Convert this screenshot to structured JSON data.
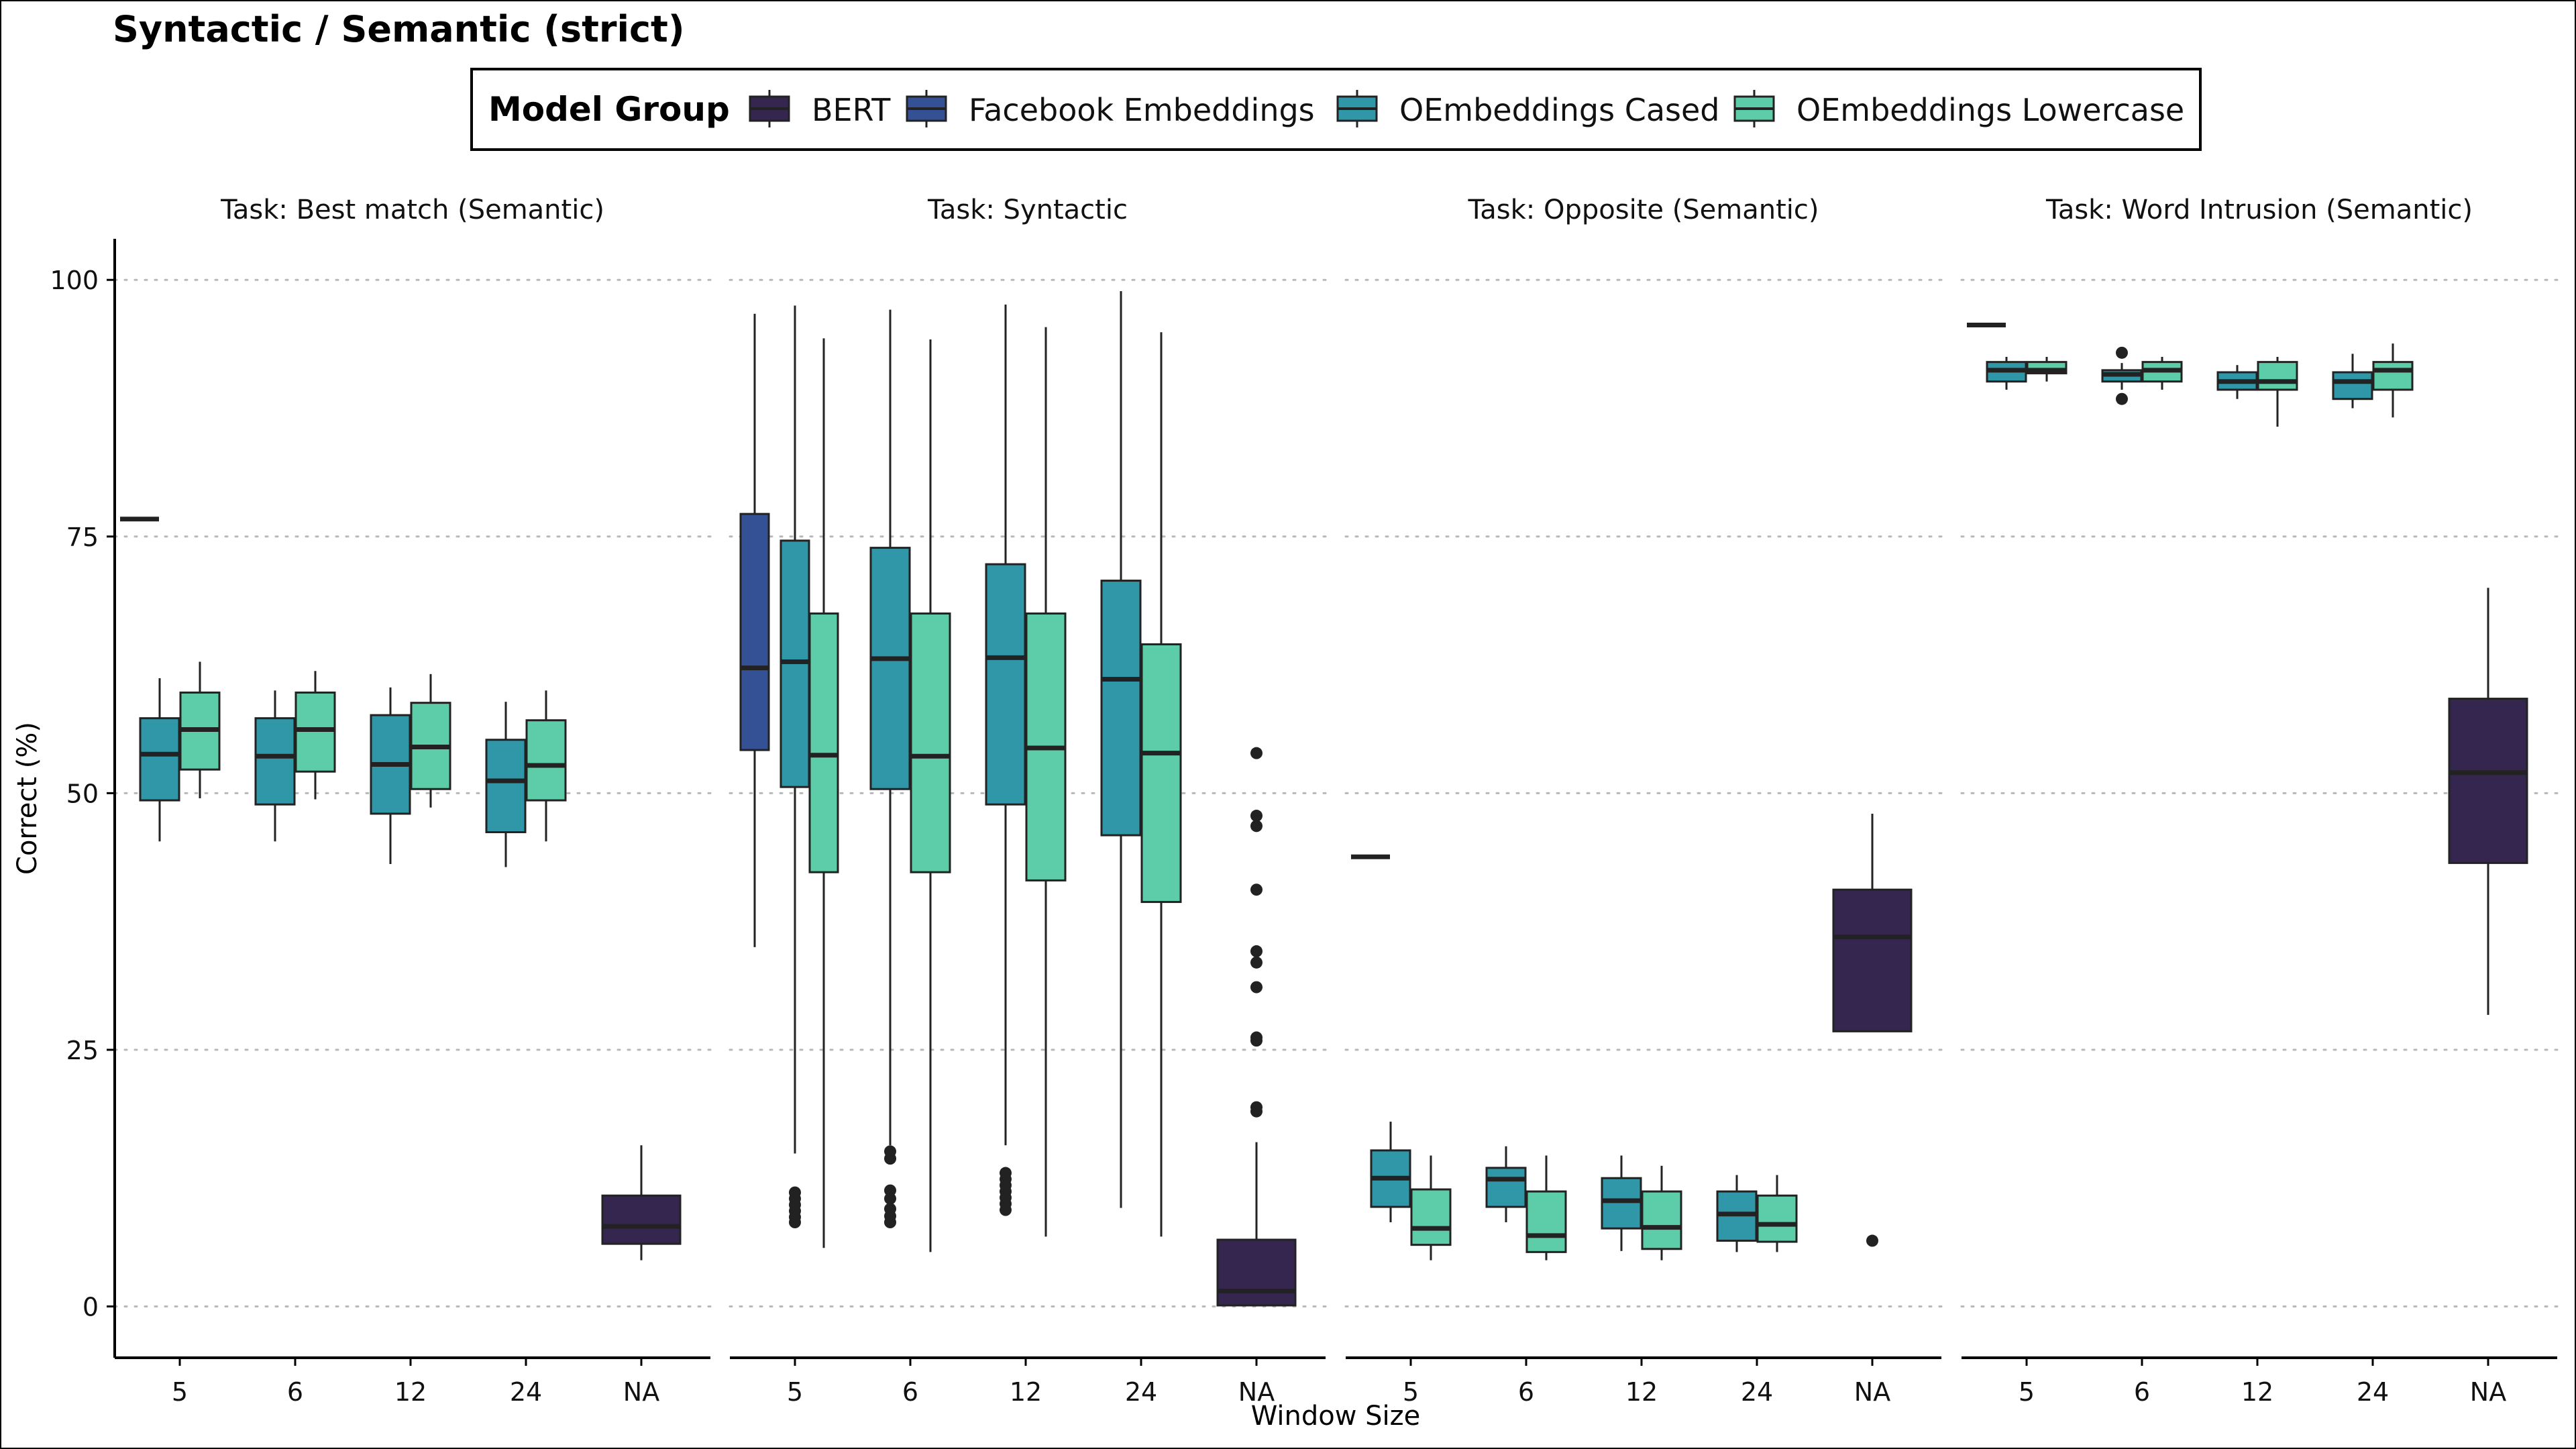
{
  "chart_data": {
    "type": "boxplot",
    "title": "Syntactic / Semantic (strict)",
    "xlabel": "Window Size",
    "ylabel": "Correct (%)",
    "ylim": [
      -5,
      104
    ],
    "yticks": [
      0,
      25,
      50,
      75,
      100
    ],
    "grid": "horizontal dotted",
    "legend": {
      "title": "Model Group",
      "placement": "top",
      "entries": [
        {
          "name": "BERT",
          "color": "#35264f"
        },
        {
          "name": "Facebook Embeddings",
          "color": "#355196"
        },
        {
          "name": "OEmbeddings Cased",
          "color": "#3097a8"
        },
        {
          "name": "OEmbeddings Lowercase",
          "color": "#5ccda8"
        }
      ]
    },
    "categories": [
      "5",
      "6",
      "12",
      "24",
      "NA"
    ],
    "panels": [
      {
        "title": "Task: Best match (Semantic)",
        "boxes": [
          {
            "category": "5",
            "group": "BERT",
            "q1": 76.7,
            "median": 76.7,
            "q3": 76.7,
            "whisker_low": 76.7,
            "whisker_high": 76.7,
            "outliers": []
          },
          {
            "category": "5",
            "group": "OEmbeddings Cased",
            "q1": 49.3,
            "median": 53.8,
            "q3": 57.3,
            "whisker_low": 45.3,
            "whisker_high": 61.2,
            "outliers": []
          },
          {
            "category": "5",
            "group": "OEmbeddings Lowercase",
            "q1": 52.3,
            "median": 56.2,
            "q3": 59.8,
            "whisker_low": 49.5,
            "whisker_high": 62.8,
            "outliers": []
          },
          {
            "category": "6",
            "group": "OEmbeddings Cased",
            "q1": 48.9,
            "median": 53.6,
            "q3": 57.3,
            "whisker_low": 45.3,
            "whisker_high": 60.0,
            "outliers": []
          },
          {
            "category": "6",
            "group": "OEmbeddings Lowercase",
            "q1": 52.1,
            "median": 56.2,
            "q3": 59.8,
            "whisker_low": 49.4,
            "whisker_high": 61.9,
            "outliers": []
          },
          {
            "category": "12",
            "group": "OEmbeddings Cased",
            "q1": 48.0,
            "median": 52.8,
            "q3": 57.6,
            "whisker_low": 43.1,
            "whisker_high": 60.3,
            "outliers": []
          },
          {
            "category": "12",
            "group": "OEmbeddings Lowercase",
            "q1": 50.4,
            "median": 54.5,
            "q3": 58.8,
            "whisker_low": 48.6,
            "whisker_high": 61.6,
            "outliers": []
          },
          {
            "category": "24",
            "group": "OEmbeddings Cased",
            "q1": 46.2,
            "median": 51.2,
            "q3": 55.2,
            "whisker_low": 42.8,
            "whisker_high": 58.9,
            "outliers": []
          },
          {
            "category": "24",
            "group": "OEmbeddings Lowercase",
            "q1": 49.3,
            "median": 52.7,
            "q3": 57.1,
            "whisker_low": 45.3,
            "whisker_high": 60.0,
            "outliers": []
          },
          {
            "category": "NA",
            "group": "BERT",
            "q1": 6.1,
            "median": 7.8,
            "q3": 10.8,
            "whisker_low": 4.5,
            "whisker_high": 15.7,
            "outliers": []
          }
        ]
      },
      {
        "title": "Task: Syntactic",
        "boxes": [
          {
            "category": "5",
            "group": "Facebook Embeddings",
            "q1": 54.2,
            "median": 62.2,
            "q3": 77.2,
            "whisker_low": 35.0,
            "whisker_high": 96.7,
            "outliers": []
          },
          {
            "category": "5",
            "group": "OEmbeddings Cased",
            "q1": 50.6,
            "median": 62.8,
            "q3": 74.6,
            "whisker_low": 14.9,
            "whisker_high": 97.5,
            "outliers": [
              8.2,
              8.7,
              9.3,
              9.9,
              10.5,
              11.1
            ]
          },
          {
            "category": "5",
            "group": "OEmbeddings Lowercase",
            "q1": 42.3,
            "median": 53.7,
            "q3": 67.5,
            "whisker_low": 5.7,
            "whisker_high": 94.3,
            "outliers": []
          },
          {
            "category": "6",
            "group": "OEmbeddings Cased",
            "q1": 50.4,
            "median": 63.1,
            "q3": 73.9,
            "whisker_low": 15.7,
            "whisker_high": 97.1,
            "outliers": [
              8.2,
              8.8,
              9.5,
              10.5,
              11.3,
              14.4,
              15.1
            ]
          },
          {
            "category": "6",
            "group": "OEmbeddings Lowercase",
            "q1": 42.3,
            "median": 53.6,
            "q3": 67.5,
            "whisker_low": 5.3,
            "whisker_high": 94.2,
            "outliers": []
          },
          {
            "category": "12",
            "group": "OEmbeddings Cased",
            "q1": 48.9,
            "median": 63.2,
            "q3": 72.3,
            "whisker_low": 15.7,
            "whisker_high": 97.6,
            "outliers": [
              9.4,
              10.0,
              10.6,
              11.2,
              11.8,
              12.4,
              13.0
            ]
          },
          {
            "category": "12",
            "group": "OEmbeddings Lowercase",
            "q1": 41.5,
            "median": 54.4,
            "q3": 67.5,
            "whisker_low": 6.8,
            "whisker_high": 95.4,
            "outliers": []
          },
          {
            "category": "24",
            "group": "OEmbeddings Cased",
            "q1": 45.9,
            "median": 61.1,
            "q3": 70.7,
            "whisker_low": 9.6,
            "whisker_high": 98.9,
            "outliers": []
          },
          {
            "category": "24",
            "group": "OEmbeddings Lowercase",
            "q1": 39.4,
            "median": 53.9,
            "q3": 64.5,
            "whisker_low": 6.8,
            "whisker_high": 94.9,
            "outliers": []
          },
          {
            "category": "NA",
            "group": "BERT",
            "q1": 0.1,
            "median": 1.5,
            "q3": 6.5,
            "whisker_low": 0.0,
            "whisker_high": 16.0,
            "outliers": [
              19.0,
              19.4,
              25.9,
              26.2,
              31.1,
              33.5,
              34.6,
              40.6,
              46.8,
              47.8,
              53.9
            ]
          }
        ]
      },
      {
        "title": "Task: Opposite (Semantic)",
        "boxes": [
          {
            "category": "5",
            "group": "BERT",
            "q1": 43.8,
            "median": 43.8,
            "q3": 43.8,
            "whisker_low": 43.8,
            "whisker_high": 43.8,
            "outliers": []
          },
          {
            "category": "5",
            "group": "OEmbeddings Cased",
            "q1": 9.7,
            "median": 12.5,
            "q3": 15.2,
            "whisker_low": 8.2,
            "whisker_high": 18.0,
            "outliers": []
          },
          {
            "category": "5",
            "group": "OEmbeddings Lowercase",
            "q1": 6.0,
            "median": 7.6,
            "q3": 11.4,
            "whisker_low": 4.5,
            "whisker_high": 14.7,
            "outliers": []
          },
          {
            "category": "6",
            "group": "OEmbeddings Cased",
            "q1": 9.7,
            "median": 12.4,
            "q3": 13.5,
            "whisker_low": 8.2,
            "whisker_high": 15.6,
            "outliers": []
          },
          {
            "category": "6",
            "group": "OEmbeddings Lowercase",
            "q1": 5.3,
            "median": 6.9,
            "q3": 11.2,
            "whisker_low": 4.5,
            "whisker_high": 14.7,
            "outliers": []
          },
          {
            "category": "12",
            "group": "OEmbeddings Cased",
            "q1": 7.6,
            "median": 10.3,
            "q3": 12.5,
            "whisker_low": 5.4,
            "whisker_high": 14.7,
            "outliers": []
          },
          {
            "category": "12",
            "group": "OEmbeddings Lowercase",
            "q1": 5.6,
            "median": 7.7,
            "q3": 11.2,
            "whisker_low": 4.5,
            "whisker_high": 13.7,
            "outliers": []
          },
          {
            "category": "24",
            "group": "OEmbeddings Cased",
            "q1": 6.4,
            "median": 9.0,
            "q3": 11.2,
            "whisker_low": 5.3,
            "whisker_high": 12.8,
            "outliers": []
          },
          {
            "category": "24",
            "group": "OEmbeddings Lowercase",
            "q1": 6.3,
            "median": 8.0,
            "q3": 10.8,
            "whisker_low": 5.3,
            "whisker_high": 12.8,
            "outliers": []
          },
          {
            "category": "NA",
            "group": "BERT",
            "q1": 26.8,
            "median": 36.0,
            "q3": 40.6,
            "whisker_low": 26.8,
            "whisker_high": 48.0,
            "outliers": [
              6.4
            ]
          }
        ]
      },
      {
        "title": "Task: Word Intrusion (Semantic)",
        "boxes": [
          {
            "category": "5",
            "group": "BERT",
            "q1": 95.6,
            "median": 95.6,
            "q3": 95.6,
            "whisker_low": 95.6,
            "whisker_high": 95.6,
            "outliers": []
          },
          {
            "category": "5",
            "group": "OEmbeddings Cased",
            "q1": 90.1,
            "median": 91.2,
            "q3": 92.0,
            "whisker_low": 89.3,
            "whisker_high": 92.5,
            "outliers": []
          },
          {
            "category": "5",
            "group": "OEmbeddings Lowercase",
            "q1": 90.9,
            "median": 91.2,
            "q3": 92.0,
            "whisker_low": 90.1,
            "whisker_high": 92.5,
            "outliers": []
          },
          {
            "category": "6",
            "group": "OEmbeddings Cased",
            "q1": 90.1,
            "median": 90.8,
            "q3": 91.2,
            "whisker_low": 89.3,
            "whisker_high": 91.9,
            "outliers": [
              88.4,
              92.9
            ]
          },
          {
            "category": "6",
            "group": "OEmbeddings Lowercase",
            "q1": 90.1,
            "median": 91.2,
            "q3": 92.0,
            "whisker_low": 89.3,
            "whisker_high": 92.5,
            "outliers": []
          },
          {
            "category": "12",
            "group": "OEmbeddings Cased",
            "q1": 89.3,
            "median": 90.1,
            "q3": 91.0,
            "whisker_low": 88.4,
            "whisker_high": 91.7,
            "outliers": []
          },
          {
            "category": "12",
            "group": "OEmbeddings Lowercase",
            "q1": 89.3,
            "median": 90.1,
            "q3": 92.0,
            "whisker_low": 85.7,
            "whisker_high": 92.5,
            "outliers": []
          },
          {
            "category": "24",
            "group": "OEmbeddings Cased",
            "q1": 88.4,
            "median": 90.1,
            "q3": 91.0,
            "whisker_low": 87.5,
            "whisker_high": 92.8,
            "outliers": []
          },
          {
            "category": "24",
            "group": "OEmbeddings Lowercase",
            "q1": 89.3,
            "median": 91.2,
            "q3": 92.0,
            "whisker_low": 86.6,
            "whisker_high": 93.8,
            "outliers": []
          },
          {
            "category": "NA",
            "group": "BERT",
            "q1": 43.2,
            "median": 52.0,
            "q3": 59.2,
            "whisker_low": 28.4,
            "whisker_high": 70.0,
            "outliers": []
          }
        ]
      }
    ]
  }
}
